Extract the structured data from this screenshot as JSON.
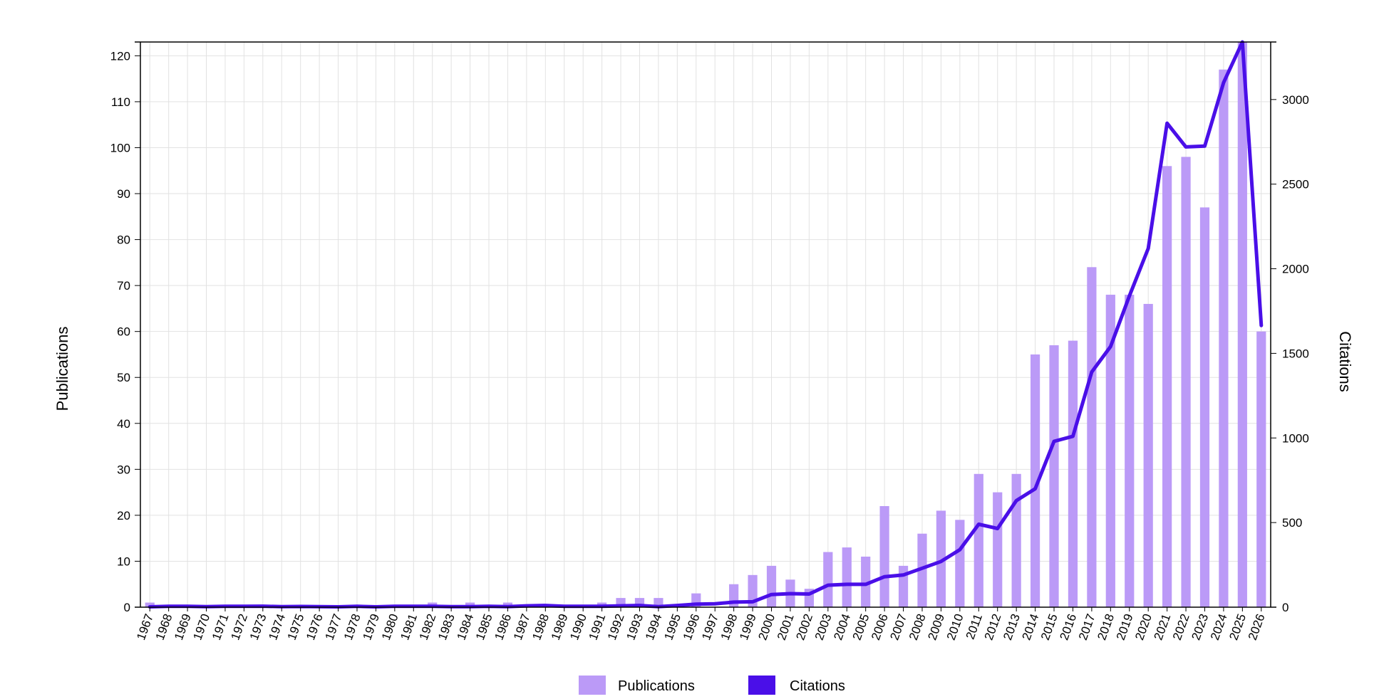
{
  "chart_data": {
    "type": "bar+line",
    "categories": [
      "1967",
      "1968",
      "1969",
      "1970",
      "1971",
      "1972",
      "1973",
      "1974",
      "1975",
      "1976",
      "1977",
      "1978",
      "1979",
      "1980",
      "1981",
      "1982",
      "1983",
      "1984",
      "1985",
      "1986",
      "1987",
      "1988",
      "1989",
      "1990",
      "1991",
      "1992",
      "1993",
      "1994",
      "1995",
      "1996",
      "1997",
      "1998",
      "1999",
      "2000",
      "2001",
      "2002",
      "2003",
      "2004",
      "2005",
      "2006",
      "2007",
      "2008",
      "2009",
      "2010",
      "2011",
      "2012",
      "2013",
      "2014",
      "2015",
      "2016",
      "2017",
      "2018",
      "2019",
      "2020",
      "2021",
      "2022",
      "2023",
      "2024",
      "2025",
      "2026"
    ],
    "series": [
      {
        "name": "Publications",
        "type": "bar",
        "axis": "left",
        "color": "#bb9af7",
        "values": [
          1,
          0,
          0,
          0,
          0,
          0,
          0,
          0,
          0,
          0,
          0,
          0,
          0,
          0,
          0,
          1,
          0,
          1,
          0,
          1,
          0,
          0,
          0,
          0,
          1,
          2,
          2,
          2,
          0,
          3,
          0,
          5,
          7,
          9,
          6,
          4,
          12,
          13,
          11,
          22,
          9,
          16,
          21,
          19,
          29,
          25,
          29,
          55,
          57,
          58,
          74,
          68,
          68,
          66,
          96,
          98,
          87,
          117,
          123,
          60
        ]
      },
      {
        "name": "Citations",
        "type": "line",
        "axis": "right",
        "color": "#4a0fe8",
        "values": [
          2,
          5,
          5,
          3,
          5,
          5,
          6,
          3,
          4,
          3,
          2,
          5,
          2,
          5,
          5,
          5,
          3,
          3,
          5,
          3,
          8,
          10,
          5,
          5,
          5,
          8,
          10,
          3,
          10,
          18,
          20,
          30,
          32,
          75,
          80,
          78,
          130,
          135,
          135,
          180,
          190,
          230,
          270,
          340,
          490,
          465,
          630,
          700,
          980,
          1010,
          1390,
          1540,
          1840,
          2120,
          2860,
          2720,
          2725,
          3100,
          3340,
          1665
        ]
      }
    ],
    "y_left": {
      "label": "Publications",
      "min": 0,
      "max": 123,
      "ticks": [
        0,
        10,
        20,
        30,
        40,
        50,
        60,
        70,
        80,
        90,
        100,
        110,
        120
      ]
    },
    "y_right": {
      "label": "Citations",
      "min": 0,
      "max": 3340,
      "ticks": [
        0,
        500,
        1000,
        1500,
        2000,
        2500,
        3000
      ]
    },
    "grid": true,
    "legend": {
      "position": "bottom-center"
    }
  }
}
